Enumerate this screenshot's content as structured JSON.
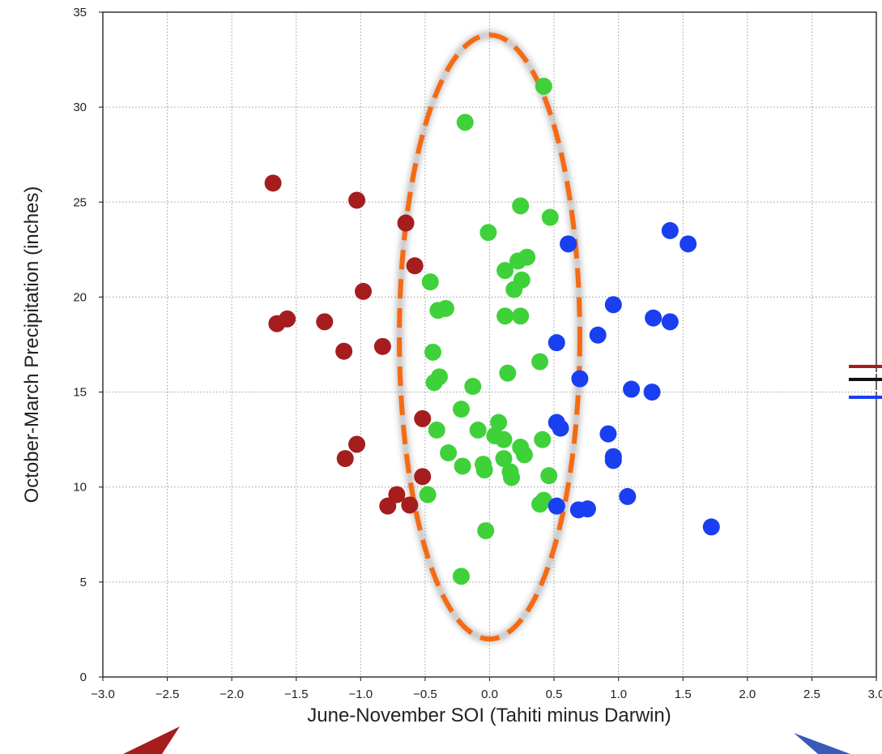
{
  "chart_data": {
    "type": "scatter",
    "xlabel": "June-November SOI (Tahiti minus Darwin)",
    "ylabel": "October-March Precipitation (inches)",
    "xlim": [
      -3.0,
      3.0
    ],
    "ylim": [
      0,
      35
    ],
    "x_ticks": [
      "−3.0",
      "−2.5",
      "−2.0",
      "−1.5",
      "−1.0",
      "−0.5",
      "0.0",
      "0.5",
      "1.0",
      "1.5",
      "2.0",
      "2.5",
      "3.0"
    ],
    "x_tick_values": [
      -3.0,
      -2.5,
      -2.0,
      -1.5,
      -1.0,
      -0.5,
      0.0,
      0.5,
      1.0,
      1.5,
      2.0,
      2.5,
      3.0
    ],
    "y_ticks": [
      "0",
      "5",
      "10",
      "15",
      "20",
      "25",
      "30",
      "35"
    ],
    "y_tick_values": [
      0,
      5,
      10,
      15,
      20,
      25,
      30,
      35
    ],
    "grid": true,
    "colors": {
      "red": "#a51d1d",
      "green": "#3fd13a",
      "blue": "#1a3ff0",
      "ellipse": "#f56a14",
      "black": "#111111"
    },
    "series": [
      {
        "color_key": "red",
        "points": [
          [
            -1.68,
            26.0
          ],
          [
            -1.03,
            25.1
          ],
          [
            -0.98,
            20.3
          ],
          [
            -1.65,
            18.6
          ],
          [
            -1.57,
            18.85
          ],
          [
            -1.28,
            18.7
          ],
          [
            -1.13,
            17.15
          ],
          [
            -0.83,
            17.4
          ],
          [
            -1.03,
            12.25
          ],
          [
            -1.12,
            11.5
          ],
          [
            -0.65,
            23.9
          ],
          [
            -0.58,
            21.65
          ],
          [
            -0.52,
            13.6
          ],
          [
            -0.52,
            10.55
          ],
          [
            -0.72,
            9.6
          ],
          [
            -0.79,
            9.0
          ],
          [
            -0.62,
            9.05
          ]
        ]
      },
      {
        "color_key": "green",
        "points": [
          [
            0.42,
            31.1
          ],
          [
            -0.19,
            29.2
          ],
          [
            0.24,
            24.8
          ],
          [
            0.47,
            24.2
          ],
          [
            -0.01,
            23.4
          ],
          [
            0.29,
            22.1
          ],
          [
            0.22,
            21.9
          ],
          [
            0.12,
            21.4
          ],
          [
            0.25,
            20.9
          ],
          [
            0.19,
            20.4
          ],
          [
            -0.46,
            20.8
          ],
          [
            -0.4,
            19.3
          ],
          [
            -0.34,
            19.4
          ],
          [
            0.12,
            19.0
          ],
          [
            0.24,
            19.0
          ],
          [
            -0.44,
            17.1
          ],
          [
            0.39,
            16.6
          ],
          [
            0.14,
            16.0
          ],
          [
            -0.43,
            15.5
          ],
          [
            -0.39,
            15.8
          ],
          [
            -0.13,
            15.3
          ],
          [
            -0.22,
            14.1
          ],
          [
            -0.41,
            13.0
          ],
          [
            -0.09,
            13.0
          ],
          [
            0.07,
            13.4
          ],
          [
            0.04,
            12.7
          ],
          [
            0.11,
            12.5
          ],
          [
            0.41,
            12.5
          ],
          [
            0.24,
            12.1
          ],
          [
            0.27,
            11.7
          ],
          [
            -0.32,
            11.8
          ],
          [
            -0.21,
            11.1
          ],
          [
            -0.05,
            11.2
          ],
          [
            -0.04,
            10.9
          ],
          [
            0.11,
            11.5
          ],
          [
            0.16,
            10.8
          ],
          [
            0.17,
            10.5
          ],
          [
            0.46,
            10.6
          ],
          [
            -0.48,
            9.6
          ],
          [
            0.39,
            9.1
          ],
          [
            0.42,
            9.3
          ],
          [
            -0.03,
            7.7
          ],
          [
            -0.22,
            5.3
          ]
        ]
      },
      {
        "color_key": "blue",
        "points": [
          [
            1.4,
            23.5
          ],
          [
            1.54,
            22.8
          ],
          [
            0.61,
            22.8
          ],
          [
            0.96,
            19.6
          ],
          [
            1.27,
            18.9
          ],
          [
            1.4,
            18.7
          ],
          [
            0.84,
            18.0
          ],
          [
            0.52,
            17.6
          ],
          [
            0.7,
            15.7
          ],
          [
            1.1,
            15.15
          ],
          [
            1.26,
            15.0
          ],
          [
            0.52,
            13.4
          ],
          [
            0.55,
            13.1
          ],
          [
            0.92,
            12.8
          ],
          [
            0.96,
            11.6
          ],
          [
            0.96,
            11.4
          ],
          [
            1.07,
            9.5
          ],
          [
            0.52,
            9.0
          ],
          [
            0.69,
            8.8
          ],
          [
            0.76,
            8.85
          ],
          [
            1.72,
            7.9
          ]
        ]
      }
    ],
    "annotation_ellipse": {
      "center": [
        0.0,
        17.9
      ],
      "semi_axis_x": 0.7,
      "semi_axis_y": 15.9
    }
  }
}
